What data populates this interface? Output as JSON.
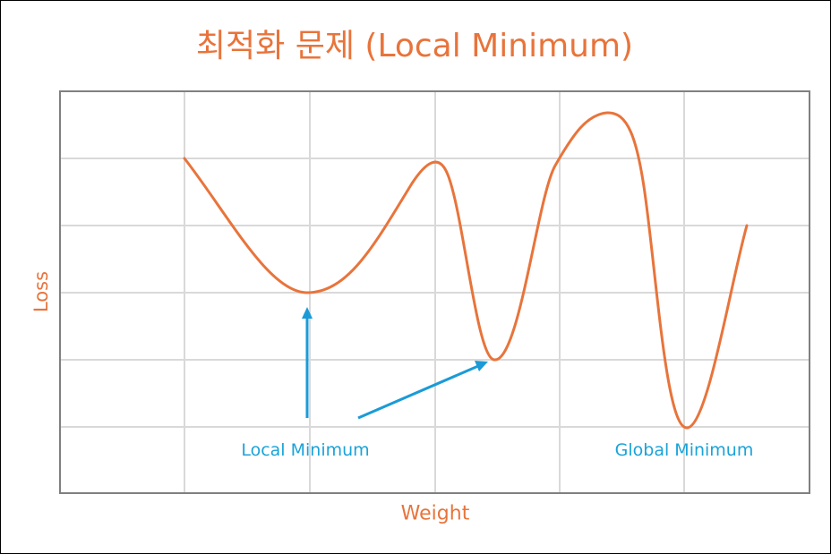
{
  "title": "최적화 문제 (Local Minimum)",
  "axes": {
    "xlabel": "Weight",
    "ylabel": "Loss"
  },
  "annotations": {
    "local_minimum": "Local Minimum",
    "global_minimum": "Global Minimum"
  },
  "colors": {
    "curve": "#E8743B",
    "arrow": "#1A9BD7",
    "grid": "#D9D9D9",
    "plot_border": "#808080"
  }
}
